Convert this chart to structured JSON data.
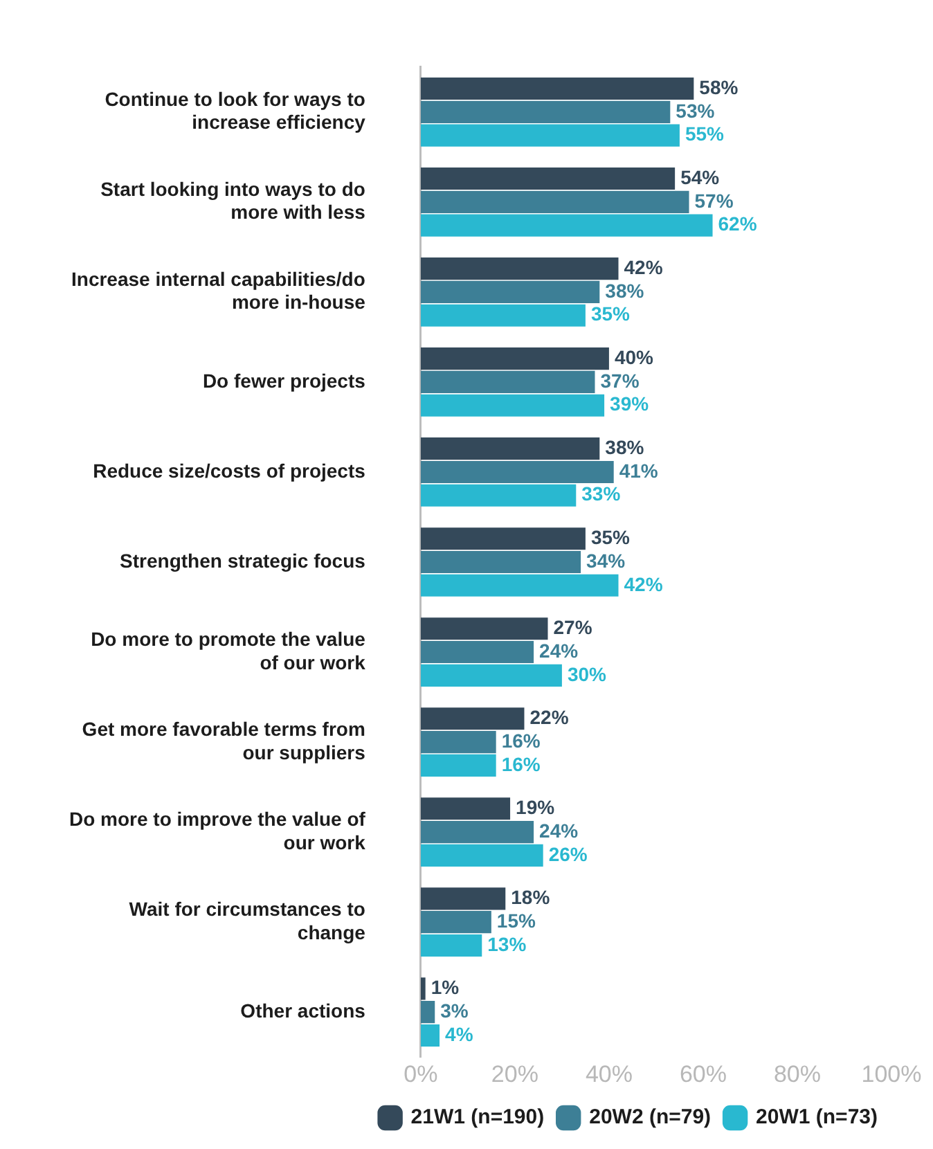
{
  "chart_data": {
    "type": "bar",
    "orientation": "horizontal",
    "categories": [
      "Continue to look for ways to increase efficiency",
      "Start looking into ways to do more with less",
      "Increase internal capabilities/do more in-house",
      "Do fewer projects",
      "Reduce size/costs of projects",
      "Strengthen strategic focus",
      "Do more to promote the value of our work",
      "Get more favorable terms from our suppliers",
      "Do more to improve the value of our work",
      "Wait for circumstances to change",
      "Other actions"
    ],
    "series": [
      {
        "name": "21W1 (n=190)",
        "color": "#34495a",
        "values": [
          58,
          54,
          42,
          40,
          38,
          35,
          27,
          22,
          19,
          18,
          1
        ],
        "value_labels": [
          "58%",
          "54%",
          "42%",
          "40%",
          "38%",
          "35%",
          "27%",
          "22%",
          "19%",
          "18%",
          "1%"
        ]
      },
      {
        "name": "20W2 (n=79)",
        "color": "#3d7f96",
        "values": [
          53,
          57,
          38,
          37,
          41,
          34,
          24,
          16,
          24,
          15,
          3
        ],
        "value_labels": [
          "53%",
          "57%",
          "38%",
          "37%",
          "41%",
          "34%",
          "24%",
          "16%",
          "24%",
          "15%",
          "3%"
        ]
      },
      {
        "name": "20W1 (n=73)",
        "color": "#29b8d0",
        "values": [
          55,
          62,
          35,
          39,
          33,
          42,
          30,
          16,
          26,
          13,
          4
        ],
        "value_labels": [
          "55%",
          "62%",
          "35%",
          "39%",
          "33%",
          "42%",
          "30%",
          "16%",
          "26%",
          "13%",
          "4%"
        ]
      }
    ],
    "xlim": [
      0,
      100
    ],
    "xticks": [
      {
        "value": 0,
        "label": "0%"
      },
      {
        "value": 20,
        "label": "20%"
      },
      {
        "value": 40,
        "label": "40%"
      },
      {
        "value": 60,
        "label": "60%"
      },
      {
        "value": 80,
        "label": "80%"
      },
      {
        "value": 100,
        "label": "100%"
      }
    ],
    "grid": false,
    "legend": "bottom"
  }
}
